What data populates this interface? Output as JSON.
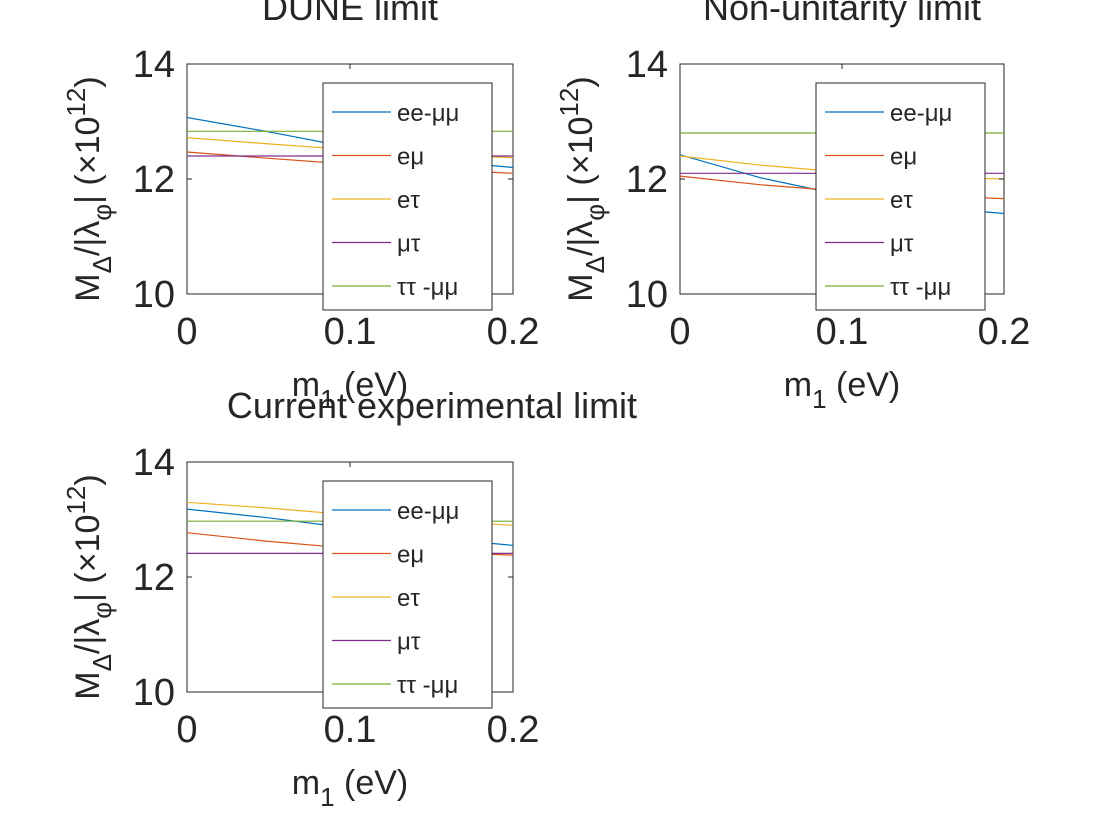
{
  "figure": {
    "background": "#ffffff"
  },
  "chart_data": [
    {
      "type": "line",
      "title": "DUNE limit",
      "xlabel": {
        "main": "m",
        "sub": "1",
        "unit": " (eV)"
      },
      "ylabel": {
        "part1": "M",
        "sub1": "Δ",
        "part2": "/|λ",
        "sub2": "φ",
        "part3": "|  (×10",
        "sup": "12",
        "part4": ")"
      },
      "xlim": [
        0,
        0.2
      ],
      "ylim": [
        10,
        14
      ],
      "x_ticks": [
        "0",
        "0.1",
        "0.2"
      ],
      "y_ticks": [
        "10",
        "12",
        "14"
      ],
      "grid": false,
      "legend_position": "inside-right",
      "x": [
        0,
        0.05,
        0.1,
        0.15,
        0.2
      ],
      "series": [
        {
          "name": "ee-μμ",
          "color": "#0072BD",
          "values": [
            13.07,
            12.82,
            12.55,
            12.33,
            12.2
          ]
        },
        {
          "name": "eμ",
          "color": "#D95319",
          "values": [
            12.47,
            12.36,
            12.26,
            12.17,
            12.1
          ]
        },
        {
          "name": "eτ",
          "color": "#EDB120",
          "values": [
            12.72,
            12.61,
            12.51,
            12.43,
            12.37
          ]
        },
        {
          "name": "μτ",
          "color": "#7E2F8E",
          "values": [
            12.4,
            12.4,
            12.4,
            12.4,
            12.4
          ]
        },
        {
          "name": "ττ -μμ",
          "color": "#77AC30",
          "values": [
            12.83,
            12.83,
            12.83,
            12.83,
            12.83
          ]
        }
      ]
    },
    {
      "type": "line",
      "title": "Non-unitarity limit",
      "xlabel": {
        "main": "m",
        "sub": "1",
        "unit": " (eV)"
      },
      "ylabel": {
        "part1": "M",
        "sub1": "Δ",
        "part2": "/|λ",
        "sub2": "φ",
        "part3": "|  (×10",
        "sup": "12",
        "part4": ")"
      },
      "xlim": [
        0,
        0.2
      ],
      "ylim": [
        10,
        14
      ],
      "x_ticks": [
        "0",
        "0.1",
        "0.2"
      ],
      "y_ticks": [
        "10",
        "12",
        "14"
      ],
      "grid": false,
      "legend_position": "inside-right",
      "x": [
        0,
        0.05,
        0.1,
        0.15,
        0.2
      ],
      "series": [
        {
          "name": "ee-μμ",
          "color": "#0072BD",
          "values": [
            12.42,
            12.02,
            11.72,
            11.52,
            11.4
          ]
        },
        {
          "name": "eμ",
          "color": "#D95319",
          "values": [
            12.05,
            11.9,
            11.79,
            11.71,
            11.66
          ]
        },
        {
          "name": "eτ",
          "color": "#EDB120",
          "values": [
            12.4,
            12.24,
            12.12,
            12.04,
            12.0
          ]
        },
        {
          "name": "μτ",
          "color": "#7E2F8E",
          "values": [
            12.1,
            12.1,
            12.1,
            12.1,
            12.1
          ]
        },
        {
          "name": "ττ -μμ",
          "color": "#77AC30",
          "values": [
            12.8,
            12.8,
            12.8,
            12.8,
            12.8
          ]
        }
      ]
    },
    {
      "type": "line",
      "title": "Current experimental limit",
      "xlabel": {
        "main": "m",
        "sub": "1",
        "unit": " (eV)"
      },
      "ylabel": {
        "part1": "M",
        "sub1": "Δ",
        "part2": "/|λ",
        "sub2": "φ",
        "part3": "|  (×10",
        "sup": "12",
        "part4": ")"
      },
      "xlim": [
        0,
        0.2
      ],
      "ylim": [
        10,
        14
      ],
      "x_ticks": [
        "0",
        "0.1",
        "0.2"
      ],
      "y_ticks": [
        "10",
        "12",
        "14"
      ],
      "grid": false,
      "legend_position": "inside-right",
      "x": [
        0,
        0.05,
        0.1,
        0.15,
        0.2
      ],
      "series": [
        {
          "name": "ee-μμ",
          "color": "#0072BD",
          "values": [
            13.18,
            13.03,
            12.85,
            12.68,
            12.55
          ]
        },
        {
          "name": "eμ",
          "color": "#D95319",
          "values": [
            12.77,
            12.62,
            12.5,
            12.43,
            12.38
          ]
        },
        {
          "name": "eτ",
          "color": "#EDB120",
          "values": [
            13.3,
            13.2,
            13.08,
            12.98,
            12.9
          ]
        },
        {
          "name": "μτ",
          "color": "#7E2F8E",
          "values": [
            12.41,
            12.41,
            12.41,
            12.41,
            12.41
          ]
        },
        {
          "name": "ττ -μμ",
          "color": "#77AC30",
          "values": [
            12.97,
            12.97,
            12.97,
            12.97,
            12.97
          ]
        }
      ]
    }
  ]
}
